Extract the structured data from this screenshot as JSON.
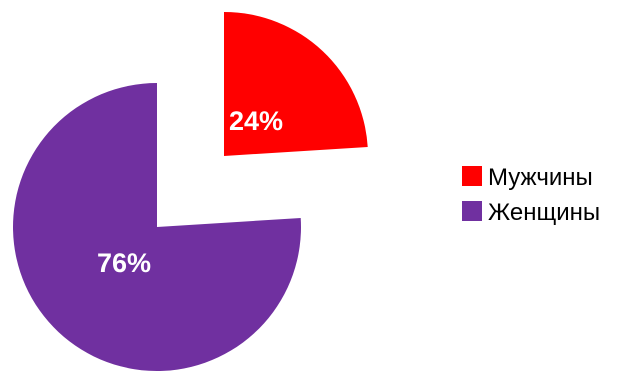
{
  "chart_data": {
    "type": "pie",
    "exploded": true,
    "legend_position": "right",
    "slices": [
      {
        "name": "Мужчины",
        "value": 24,
        "label": "24%",
        "color": "#ff0000"
      },
      {
        "name": "Женщины",
        "value": 76,
        "label": "76%",
        "color": "#7030a0"
      }
    ]
  }
}
